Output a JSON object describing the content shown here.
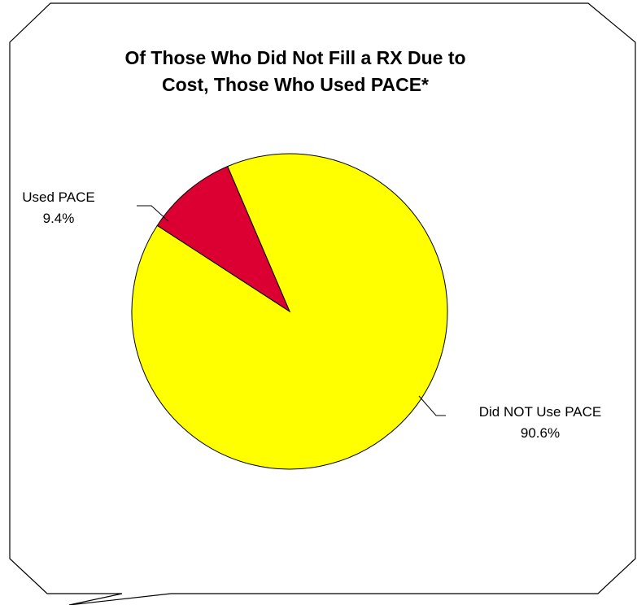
{
  "chart_data": {
    "type": "pie",
    "title_lines": [
      "Of Those Who Did Not Fill a RX Due to",
      "Cost, Those Who Used PACE*"
    ],
    "slices": [
      {
        "label": "Used PACE",
        "value_text": "9.4%",
        "value": 9.4,
        "color": "#DC0032"
      },
      {
        "label": "Did NOT Use PACE",
        "value_text": "90.6%",
        "value": 90.6,
        "color": "#FFFF00"
      }
    ],
    "slice_outline_color": "#000000",
    "callout_outline_color": "#000000",
    "background_color": "#FFFFFF"
  }
}
